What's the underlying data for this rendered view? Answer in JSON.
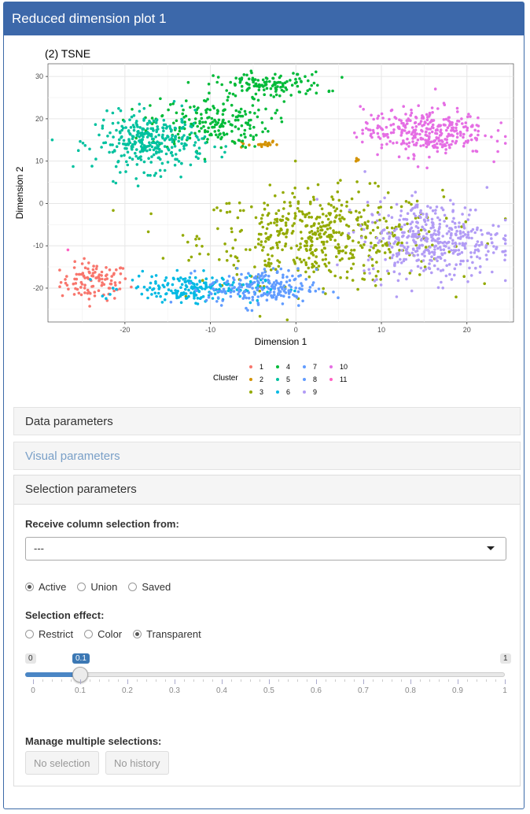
{
  "panel": {
    "title": "Reduced dimension plot 1"
  },
  "chart_data": {
    "type": "scatter",
    "title": "(2) TSNE",
    "xlabel": "Dimension 1",
    "ylabel": "Dimension 2",
    "xlim": [
      -29,
      26
    ],
    "ylim": [
      -28,
      33
    ],
    "xticks": [
      -20,
      -10,
      0,
      10,
      20
    ],
    "yticks": [
      -20,
      -10,
      0,
      10,
      20,
      30
    ],
    "grid": true,
    "legend": {
      "title": "Cluster",
      "placement": "bottom"
    },
    "series": [
      {
        "name": "1",
        "color": "#f8766d",
        "clusters": [
          {
            "cx": -23.5,
            "cy": -18.5,
            "sx": 2.0,
            "sy": 2.2,
            "n": 110
          }
        ]
      },
      {
        "name": "2",
        "color": "#d39200",
        "clusters": [
          {
            "cx": -4.5,
            "cy": 14.0,
            "sx": 1.2,
            "sy": 0.5,
            "n": 20
          },
          {
            "cx": 7.0,
            "cy": 10.5,
            "sx": 0.3,
            "sy": 0.3,
            "n": 5
          }
        ]
      },
      {
        "name": "3",
        "color": "#93aa00",
        "clusters": [
          {
            "cx": 3.0,
            "cy": -8.0,
            "sx": 7.0,
            "sy": 5.5,
            "n": 520
          }
        ]
      },
      {
        "name": "4",
        "color": "#00ba38",
        "clusters": [
          {
            "cx": -10.0,
            "cy": 19.0,
            "sx": 3.5,
            "sy": 3.0,
            "n": 200
          },
          {
            "cx": -3.0,
            "cy": 28.0,
            "sx": 3.2,
            "sy": 1.5,
            "n": 130
          }
        ]
      },
      {
        "name": "5",
        "color": "#00c19f",
        "clusters": [
          {
            "cx": -17.0,
            "cy": 14.5,
            "sx": 3.2,
            "sy": 3.3,
            "n": 320
          }
        ]
      },
      {
        "name": "6",
        "color": "#00b9e3",
        "clusters": [
          {
            "cx": -12.0,
            "cy": -20.0,
            "sx": 4.0,
            "sy": 1.6,
            "n": 200
          }
        ]
      },
      {
        "name": "7",
        "color": "#619cff",
        "clusters": [
          {
            "cx": -4.0,
            "cy": -20.0,
            "sx": 3.2,
            "sy": 2.2,
            "n": 210
          }
        ]
      },
      {
        "name": "8",
        "color": "#619cff",
        "clusters": []
      },
      {
        "name": "9",
        "color": "#b29cf5",
        "clusters": [
          {
            "cx": 16.0,
            "cy": -8.5,
            "sx": 4.0,
            "sy": 4.5,
            "n": 420
          }
        ]
      },
      {
        "name": "10",
        "color": "#e56ee4",
        "clusters": [
          {
            "cx": 15.0,
            "cy": 17.0,
            "sx": 3.6,
            "sy": 2.8,
            "n": 330
          }
        ]
      },
      {
        "name": "11",
        "color": "#ff61c3",
        "clusters": [
          {
            "cx": -26.5,
            "cy": -11.0,
            "sx": 0.2,
            "sy": 0.2,
            "n": 1
          }
        ]
      }
    ]
  },
  "sections": {
    "data": "Data parameters",
    "visual": "Visual parameters",
    "selection": "Selection parameters"
  },
  "selection": {
    "receive_label": "Receive column selection from:",
    "receive_value": "---",
    "mode_options": [
      "Active",
      "Union",
      "Saved"
    ],
    "mode_selected": "Active",
    "effect_label": "Selection effect:",
    "effect_options": [
      "Restrict",
      "Color",
      "Transparent"
    ],
    "effect_selected": "Transparent",
    "slider": {
      "min": 0,
      "max": 1,
      "value": 0.1,
      "min_label": "0",
      "max_label": "1",
      "value_label": "0.1",
      "tick_labels": [
        "0",
        "0.1",
        "0.2",
        "0.3",
        "0.4",
        "0.5",
        "0.6",
        "0.7",
        "0.8",
        "0.9",
        "1"
      ]
    },
    "manage_label": "Manage multiple selections:",
    "buttons": {
      "no_selection": "No selection",
      "no_history": "No history"
    }
  }
}
